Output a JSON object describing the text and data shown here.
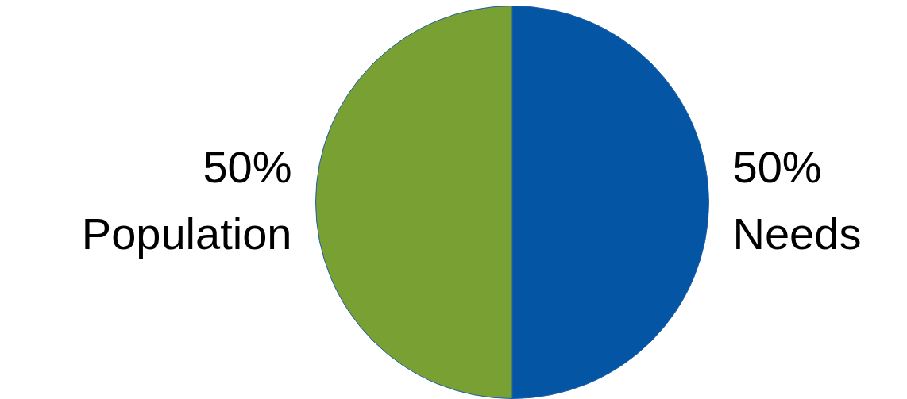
{
  "chart_data": {
    "type": "pie",
    "categories": [
      "Needs",
      "Population"
    ],
    "values": [
      50,
      50
    ],
    "colors": [
      "#0455a4",
      "#78a032"
    ],
    "value_labels": [
      "50%",
      "50%"
    ],
    "legend": false
  }
}
